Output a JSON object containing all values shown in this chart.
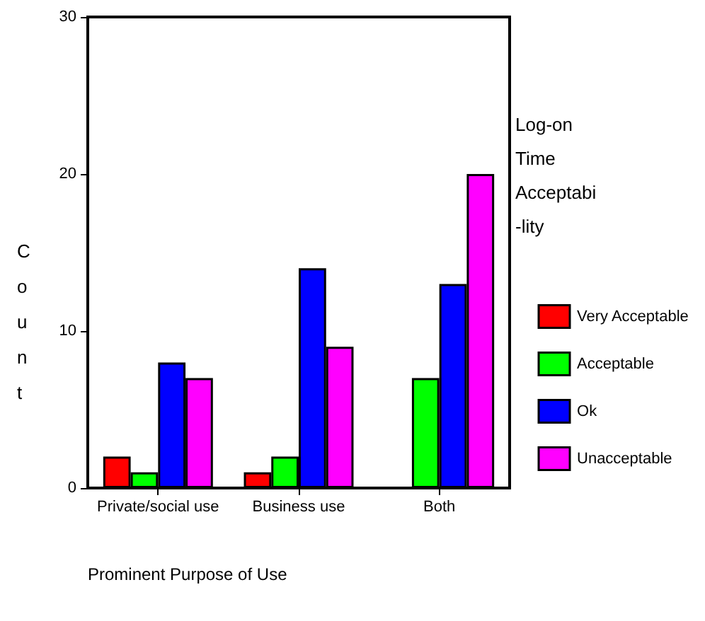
{
  "chart_data": {
    "type": "bar",
    "xlabel": "Prominent Purpose of Use",
    "ylabel": "Count",
    "legend_title": "Log-on\nTime\nAcceptabi\n-lity",
    "categories": [
      "Private/social use",
      "Business use",
      "Both"
    ],
    "series": [
      {
        "name": "Very Acceptable",
        "color": "#ff0000",
        "values": [
          2,
          1,
          0
        ]
      },
      {
        "name": "Acceptable",
        "color": "#00ff00",
        "values": [
          1,
          2,
          7
        ]
      },
      {
        "name": "Ok",
        "color": "#0000ff",
        "values": [
          8,
          14,
          13
        ]
      },
      {
        "name": "Unacceptable",
        "color": "#ff00ff",
        "values": [
          7,
          9,
          20
        ]
      }
    ],
    "ylim": [
      0,
      30
    ],
    "yticks": [
      0,
      10,
      20,
      30
    ],
    "grid": false,
    "legend": "right"
  }
}
